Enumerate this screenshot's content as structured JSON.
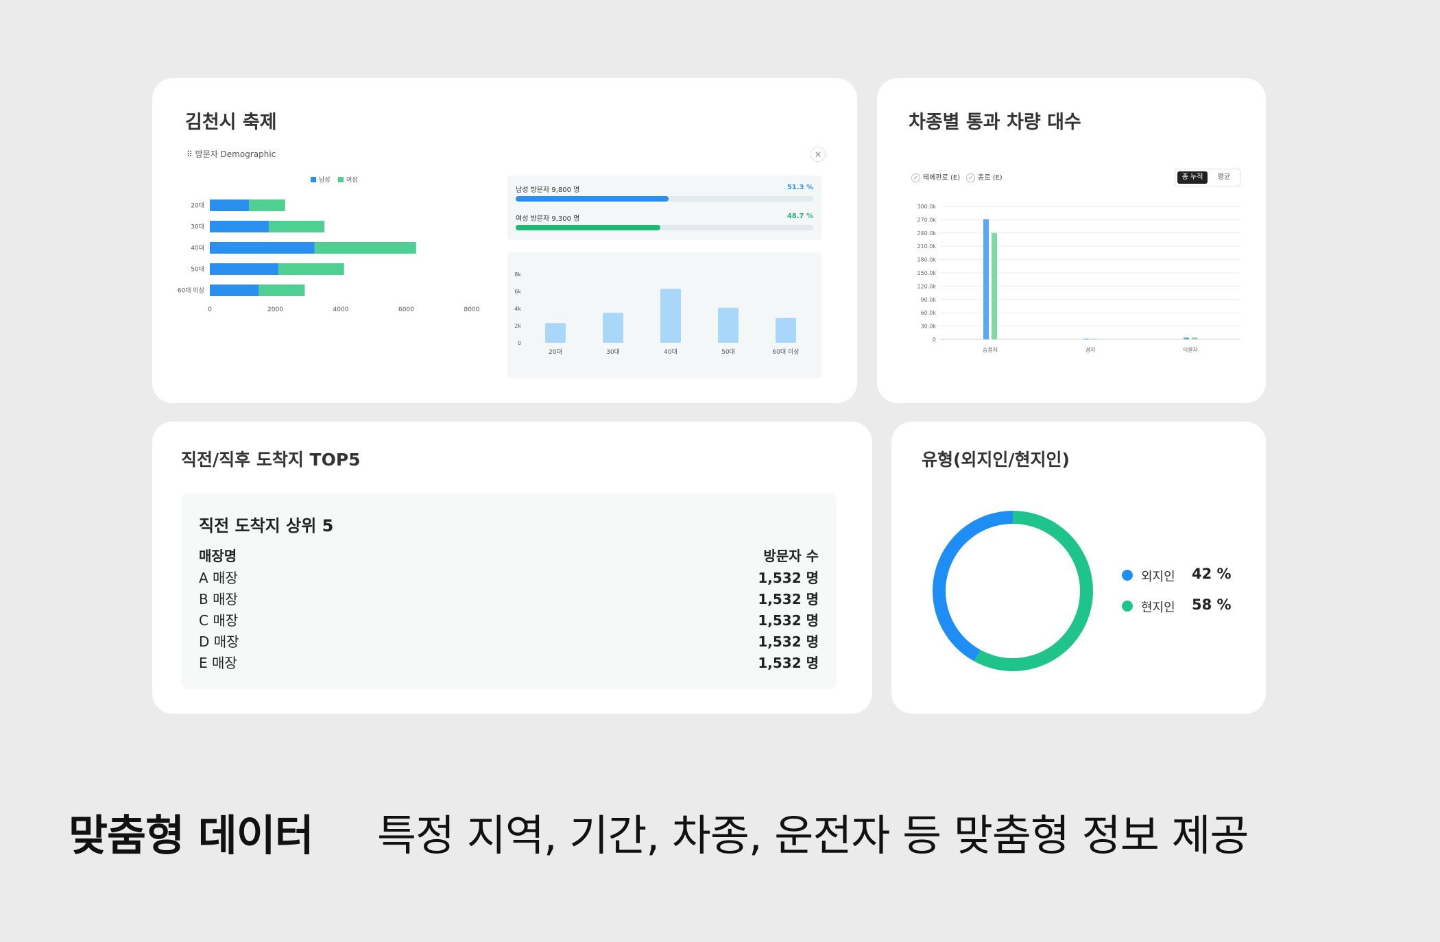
{
  "festival": {
    "title": "김천시 축제",
    "panel_label": "방문자 Demographic",
    "close_label": "×",
    "legend_male": "남성",
    "legend_female": "여성",
    "male_stat": {
      "label": "남성 방문자 9,800 명",
      "pct": "51.3 %",
      "fraction": 0.513
    },
    "female_stat": {
      "label": "여성 방문자 9,300 명",
      "pct": "48.7 %",
      "fraction": 0.487
    },
    "colors": {
      "male": "#2b8ff0",
      "female": "#4fcf92",
      "bar": "#a9d7fa"
    }
  },
  "chart_data": [
    {
      "type": "bar",
      "orientation": "horizontal",
      "stacked": true,
      "categories": [
        "20대",
        "30대",
        "40대",
        "50대",
        "60대 이상"
      ],
      "series": [
        {
          "name": "남성",
          "values": [
            1200,
            1800,
            3200,
            2100,
            1500
          ]
        },
        {
          "name": "여성",
          "values": [
            1100,
            1700,
            3100,
            2000,
            1400
          ]
        }
      ],
      "xlim": [
        0,
        8000
      ],
      "x_ticks": [
        "0",
        "2000",
        "4000",
        "6000",
        "8000"
      ],
      "legend": "top"
    },
    {
      "type": "bar",
      "categories": [
        "20대",
        "30대",
        "40대",
        "50대",
        "60대 이상"
      ],
      "values": [
        2.3,
        3.5,
        6.3,
        4.1,
        2.9
      ],
      "ylim": [
        0,
        8
      ],
      "y_ticks": [
        "0",
        "2k",
        "4k",
        "6k",
        "8k"
      ],
      "grid": false
    },
    {
      "type": "bar",
      "categories": [
        "승용차",
        "경차",
        "이륜차"
      ],
      "series": [
        {
          "name": "테베판로 (E)",
          "values": [
            271,
            1,
            4
          ]
        },
        {
          "name": "종로 (E)",
          "values": [
            240,
            1.5,
            4
          ]
        }
      ],
      "ylim": [
        0,
        300
      ],
      "y_ticks": [
        "0",
        "30.0k",
        "60.0k",
        "90.0k",
        "120.0k",
        "150.0k",
        "180.0k",
        "210.0k",
        "240.0k",
        "270.0k",
        "300.0k"
      ],
      "grid": true
    },
    {
      "type": "pie",
      "donut": true,
      "categories": [
        "외지인",
        "현지인"
      ],
      "values": [
        42,
        58
      ]
    }
  ],
  "vehicle": {
    "title": "차종별 통과 차량 대수",
    "check1": "테베판로 (E)",
    "check2": "종로 (E)",
    "toggle_on": "총 누적",
    "toggle_off": "평균",
    "colors": {
      "s1": "#5aa8f2",
      "s2": "#7ed9a4"
    }
  },
  "top5": {
    "title": "직전/직후 도착지 TOP5",
    "panel_title": "직전 도착지 상위 5",
    "col_name": "매장명",
    "col_value": "방문자 수",
    "rows": [
      {
        "name": "A 매장",
        "value": "1,532 명"
      },
      {
        "name": "B 매장",
        "value": "1,532 명"
      },
      {
        "name": "C 매장",
        "value": "1,532 명"
      },
      {
        "name": "D 매장",
        "value": "1,532 명"
      },
      {
        "name": "E 매장",
        "value": "1,532 명"
      }
    ]
  },
  "type_card": {
    "title": "유형(외지인/현지인)",
    "items": [
      {
        "name": "외지인",
        "value": "42 %",
        "color": "#1e8ef5"
      },
      {
        "name": "현지인",
        "value": "58 %",
        "color": "#1ec48a"
      }
    ]
  },
  "caption": {
    "strong": "맞춤형 데이터",
    "light": "특정 지역, 기간, 차종, 운전자 등 맞춤형 정보 제공"
  }
}
